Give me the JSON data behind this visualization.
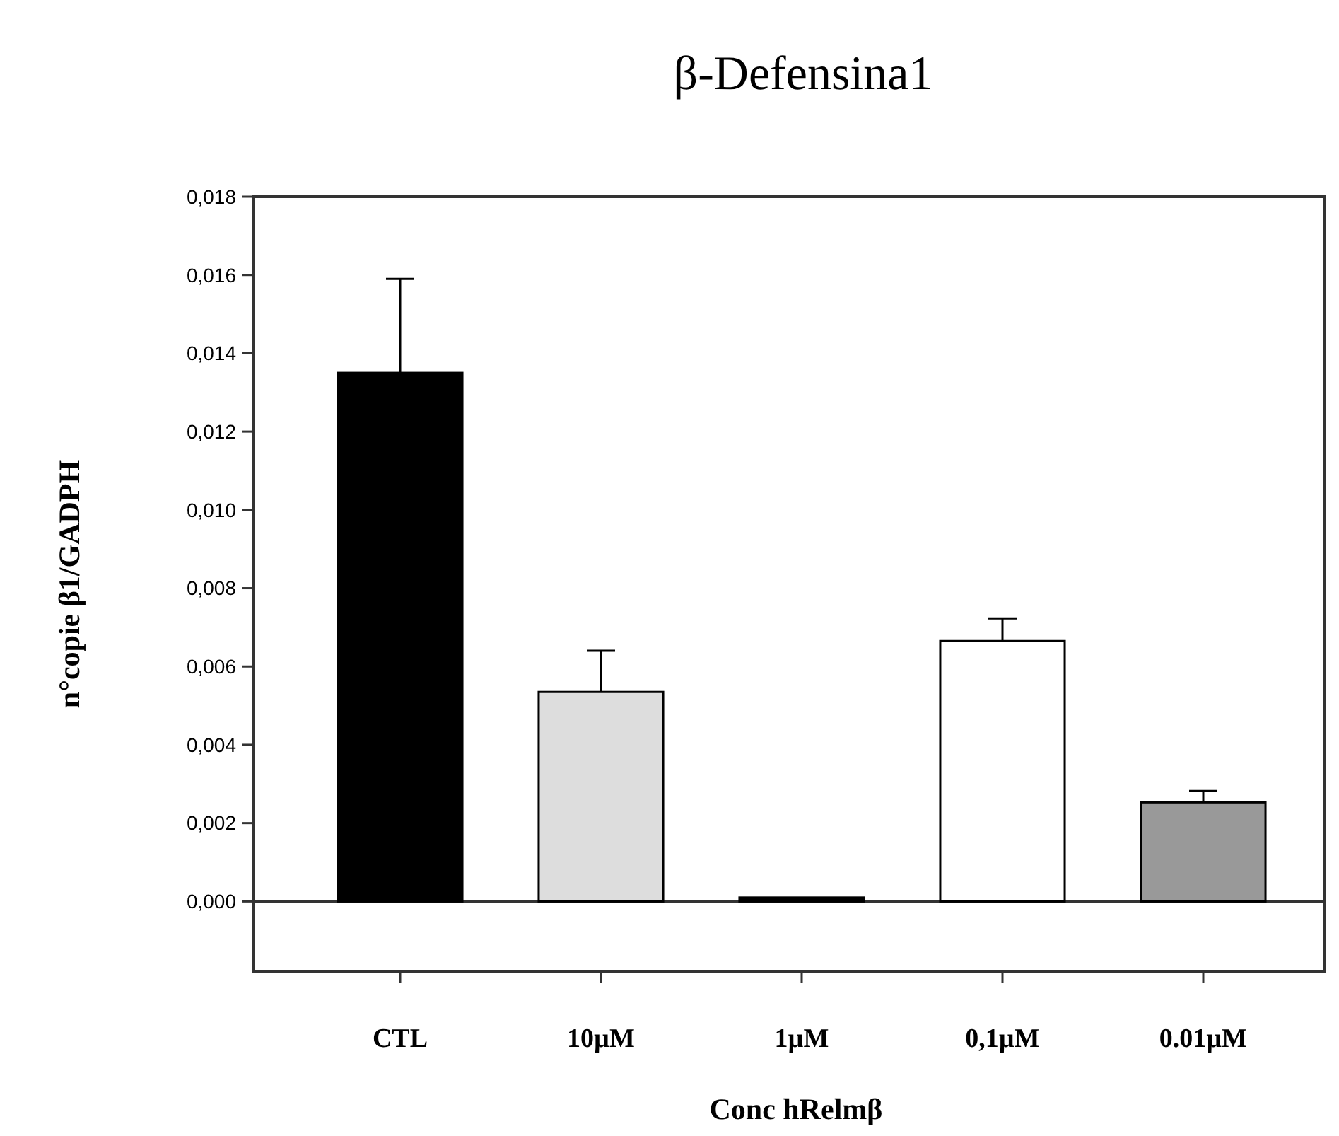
{
  "chart_data": {
    "type": "bar",
    "title": "β-Defensina1",
    "xlabel": "Conc hRelmβ",
    "ylabel": "n°copie β1/GADPH",
    "categories": [
      "CTL",
      "10µM",
      "1µM",
      "0,1µM",
      "0.01µM"
    ],
    "values": [
      0.0135,
      0.00535,
      0.0001,
      0.00665,
      0.00253
    ],
    "colors": [
      "#000000",
      "#dddddd",
      "#000000",
      "#ffffff",
      "#999999"
    ],
    "errors": [
      [
        0.0135,
        0.0159
      ],
      [
        0.00535,
        0.0064
      ],
      null,
      [
        0.00665,
        0.00723
      ],
      [
        0.00253,
        0.00282
      ]
    ],
    "ylim": [
      -0.0018,
      0.018
    ],
    "yticks": [
      {
        "value": 0,
        "label": "0,000"
      },
      {
        "value": 0.002,
        "label": "0,002"
      },
      {
        "value": 0.004,
        "label": "0,004"
      },
      {
        "value": 0.006,
        "label": "0,006"
      },
      {
        "value": 0.008,
        "label": "0,008"
      },
      {
        "value": 0.01,
        "label": "0,010"
      },
      {
        "value": 0.012,
        "label": "0,012"
      },
      {
        "value": 0.014,
        "label": "0,014"
      },
      {
        "value": 0.016,
        "label": "0,016"
      },
      {
        "value": 0.018,
        "label": "0,018"
      }
    ],
    "data_labels": false
  }
}
